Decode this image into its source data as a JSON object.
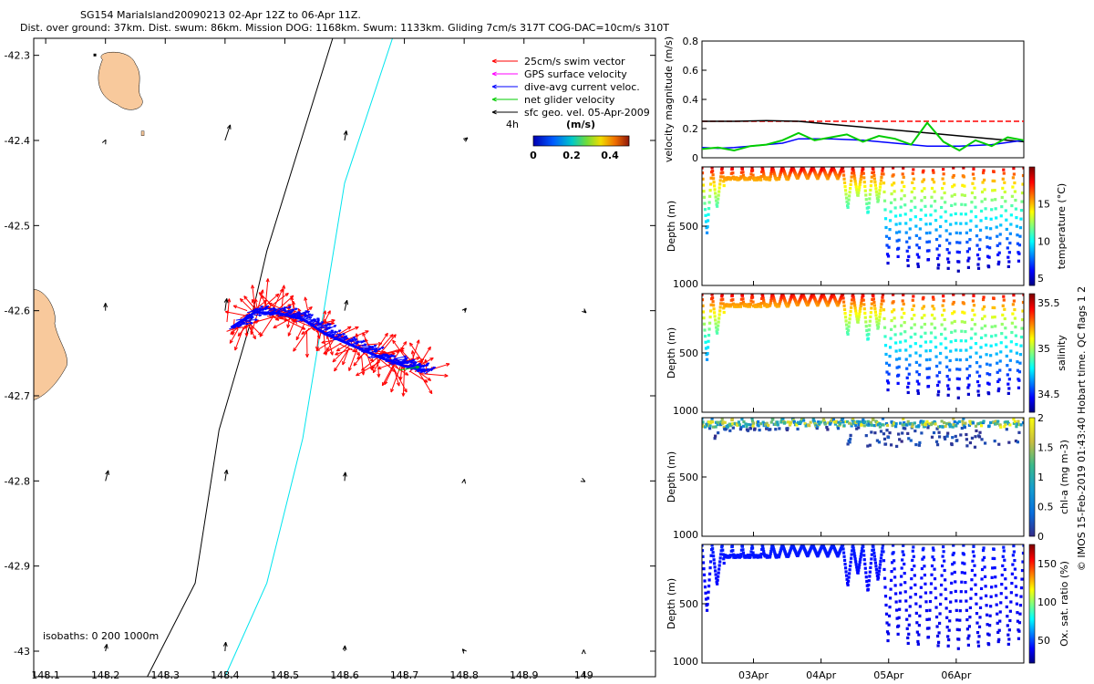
{
  "title_line1": "SG154 MariaIsland20090213 02-Apr 12Z to 06-Apr 11Z.",
  "title_line2": "Dist. over ground: 37km. Dist. swum: 86km. Mission DOG: 1168km. Swum: 1133km. Gliding 7cm/s 317T COG-DAC=10cm/s 310T",
  "credit": "© IMOS 15-Feb-2019 01:43:40 Hobart time. QC flags 1  2",
  "colors": {
    "land": "#f8c99c",
    "swim": "#ff0000",
    "gps": "#ff00ff",
    "dac": "#0000ff",
    "net": "#00cc00",
    "geo": "#000000",
    "isobath200": "#000000",
    "isobath1000": "#00e5ee"
  },
  "chart_data": [
    {
      "type": "scatter",
      "name": "track-map",
      "xlim": [
        148.08,
        149.12
      ],
      "ylim": [
        -43.03,
        -42.28
      ],
      "x_ticks": [
        "148.1",
        "148.2",
        "148.3",
        "148.4",
        "148.5",
        "148.6",
        "148.7",
        "148.8",
        "148.9",
        "149"
      ],
      "x_tick_values": [
        148.1,
        148.2,
        148.3,
        148.4,
        148.5,
        148.6,
        148.7,
        148.8,
        148.9,
        149.0
      ],
      "y_ticks": [
        "-42.3",
        "-42.4",
        "-42.5",
        "-42.6",
        "-42.7",
        "-42.8",
        "-42.9",
        "-43"
      ],
      "y_tick_values": [
        -42.3,
        -42.4,
        -42.5,
        -42.6,
        -42.7,
        -42.8,
        -42.9,
        -43.0
      ],
      "legend": [
        {
          "label": "25cm/s swim vector",
          "color_key": "swim"
        },
        {
          "label": "GPS surface velocity",
          "color_key": "gps"
        },
        {
          "label": "dive-avg current veloc.",
          "color_key": "dac"
        },
        {
          "label": "net glider velocity",
          "color_key": "net"
        },
        {
          "label": "sfc geo. vel. 05-Apr-2009",
          "color_key": "geo"
        }
      ],
      "legend_4h": "4h",
      "colorbar_unit": "(m/s)",
      "colorbar_ticks": [
        "0",
        "0.2",
        "0.4"
      ],
      "colorbar_range": [
        0,
        0.5
      ],
      "isobath_label": "isobaths: 0   200   1000m",
      "isobath_200": [
        [
          148.58,
          -42.28
        ],
        [
          148.47,
          -42.53
        ],
        [
          148.44,
          -42.62
        ],
        [
          148.39,
          -42.74
        ],
        [
          148.35,
          -42.92
        ],
        [
          148.27,
          -43.03
        ]
      ],
      "isobath_1000": [
        [
          148.68,
          -42.28
        ],
        [
          148.6,
          -42.45
        ],
        [
          148.57,
          -42.58
        ],
        [
          148.53,
          -42.75
        ],
        [
          148.47,
          -42.92
        ],
        [
          148.4,
          -43.03
        ]
      ],
      "track": [
        [
          148.41,
          -42.62
        ],
        [
          148.45,
          -42.602
        ],
        [
          148.49,
          -42.603
        ],
        [
          148.53,
          -42.61
        ],
        [
          148.57,
          -42.628
        ],
        [
          148.62,
          -42.643
        ],
        [
          148.66,
          -42.655
        ],
        [
          148.7,
          -42.665
        ],
        [
          148.73,
          -42.67
        ]
      ],
      "geo_vectors": [
        {
          "lon": 148.2,
          "lat": -42.4,
          "u": 0.001,
          "v": 0.002
        },
        {
          "lon": 148.4,
          "lat": -42.4,
          "u": 0.015,
          "v": 0.045
        },
        {
          "lon": 148.6,
          "lat": -42.4,
          "u": 0.005,
          "v": 0.028
        },
        {
          "lon": 148.8,
          "lat": -42.4,
          "u": 0.01,
          "v": 0.008
        },
        {
          "lon": 148.2,
          "lat": -42.6,
          "u": 0.0,
          "v": 0.022
        },
        {
          "lon": 148.4,
          "lat": -42.6,
          "u": 0.005,
          "v": 0.035
        },
        {
          "lon": 148.6,
          "lat": -42.6,
          "u": 0.007,
          "v": 0.03
        },
        {
          "lon": 148.8,
          "lat": -42.6,
          "u": 0.006,
          "v": 0.007
        },
        {
          "lon": 149.0,
          "lat": -42.6,
          "u": 0.007,
          "v": -0.006
        },
        {
          "lon": 148.2,
          "lat": -42.8,
          "u": 0.008,
          "v": 0.03
        },
        {
          "lon": 148.4,
          "lat": -42.8,
          "u": 0.005,
          "v": 0.032
        },
        {
          "lon": 148.6,
          "lat": -42.8,
          "u": 0.002,
          "v": 0.025
        },
        {
          "lon": 148.8,
          "lat": -42.8,
          "u": 0.001,
          "v": 0.005
        },
        {
          "lon": 149.0,
          "lat": -42.8,
          "u": 0.004,
          "v": -0.002
        },
        {
          "lon": 148.2,
          "lat": -43.0,
          "u": 0.004,
          "v": 0.02
        },
        {
          "lon": 148.4,
          "lat": -43.0,
          "u": 0.002,
          "v": 0.026
        },
        {
          "lon": 148.6,
          "lat": -43.0,
          "u": 0.001,
          "v": 0.016
        },
        {
          "lon": 148.8,
          "lat": -43.0,
          "u": -0.005,
          "v": 0.006
        },
        {
          "lon": 149.0,
          "lat": -43.0,
          "u": 0.0,
          "v": 0.004
        }
      ]
    },
    {
      "type": "line",
      "name": "velocity-magnitude",
      "ylabel": "velocity magnitude (m/s)",
      "ylim": [
        0,
        0.8
      ],
      "y_ticks": [
        "0",
        "0.2",
        "0.4",
        "0.6",
        "0.8"
      ],
      "xlim": [
        0,
        1
      ],
      "series": [
        {
          "color_key": "swim",
          "dashed": true,
          "x": [
            0,
            1
          ],
          "values": [
            0.25,
            0.25
          ]
        },
        {
          "color_key": "geo",
          "x": [
            0,
            0.1,
            0.2,
            0.3,
            0.4,
            0.5,
            0.6,
            0.7,
            0.8,
            0.9,
            1.0
          ],
          "values": [
            0.25,
            0.25,
            0.255,
            0.25,
            0.23,
            0.21,
            0.19,
            0.17,
            0.15,
            0.13,
            0.11
          ]
        },
        {
          "color_key": "dac",
          "x": [
            0,
            0.05,
            0.1,
            0.15,
            0.2,
            0.25,
            0.3,
            0.4,
            0.5,
            0.6,
            0.7,
            0.8,
            0.9,
            1.0
          ],
          "values": [
            0.07,
            0.065,
            0.07,
            0.08,
            0.09,
            0.1,
            0.13,
            0.13,
            0.12,
            0.1,
            0.08,
            0.08,
            0.09,
            0.12
          ]
        },
        {
          "color_key": "net",
          "x": [
            0,
            0.05,
            0.1,
            0.15,
            0.2,
            0.25,
            0.3,
            0.35,
            0.4,
            0.45,
            0.5,
            0.55,
            0.6,
            0.65,
            0.7,
            0.75,
            0.8,
            0.85,
            0.9,
            0.95,
            1.0
          ],
          "values": [
            0.06,
            0.07,
            0.05,
            0.08,
            0.09,
            0.12,
            0.17,
            0.12,
            0.14,
            0.16,
            0.11,
            0.15,
            0.13,
            0.09,
            0.24,
            0.11,
            0.05,
            0.12,
            0.08,
            0.14,
            0.12
          ]
        }
      ]
    },
    {
      "type": "scatter",
      "name": "temperature",
      "ylabel": "Depth (m)",
      "cbar_label": "temperature (°C)",
      "ylim": [
        0,
        1000
      ],
      "y_ticks": [
        "500",
        "1000"
      ],
      "cbar_ticks": [
        "5",
        "10",
        "15"
      ],
      "cbar_tick_values": [
        5,
        10,
        15
      ],
      "cbar_range": [
        4,
        20
      ],
      "colormap": "jet",
      "surface_value": 19.5,
      "deep_value": 4.5
    },
    {
      "type": "scatter",
      "name": "salinity",
      "ylabel": "Depth (m)",
      "cbar_label": "salinity",
      "ylim": [
        0,
        1000
      ],
      "y_ticks": [
        "500",
        "1000"
      ],
      "cbar_ticks": [
        "34.5",
        "35",
        "35.5"
      ],
      "cbar_tick_values": [
        34.5,
        35,
        35.5
      ],
      "cbar_range": [
        34.3,
        35.6
      ],
      "colormap": "jet",
      "surface_value": 35.55,
      "deep_value": 34.35
    },
    {
      "type": "scatter",
      "name": "chl-a",
      "ylabel": "Depth (m)",
      "cbar_label": "chl-a (mg m-3)",
      "ylim": [
        0,
        1000
      ],
      "y_ticks": [
        "500",
        "1000"
      ],
      "cbar_ticks": [
        "0",
        "0.5",
        "1",
        "1.5",
        "2"
      ],
      "cbar_tick_values": [
        0,
        0.5,
        1,
        1.5,
        2
      ],
      "cbar_range": [
        0,
        2
      ],
      "colormap": "parula"
    },
    {
      "type": "scatter",
      "name": "oxygen",
      "ylabel": "Depth (m)",
      "cbar_label": "Ox. sat. ratio (%)",
      "ylim": [
        0,
        1000
      ],
      "y_ticks": [
        "500",
        "1000"
      ],
      "cbar_ticks": [
        "50",
        "100",
        "150"
      ],
      "cbar_tick_values": [
        50,
        100,
        150
      ],
      "cbar_range": [
        20,
        175
      ],
      "colormap": "jet",
      "surface_value": 45,
      "deep_value": 35,
      "x_ticks": [
        "03Apr",
        "04Apr",
        "05Apr",
        "06Apr"
      ]
    }
  ],
  "dives": {
    "time_fraction_ticks": [
      0.16,
      0.37,
      0.58,
      0.79
    ],
    "plateau": [
      0.07,
      0.28
    ],
    "max_depths": [
      560,
      340,
      400,
      380,
      300,
      430,
      220,
      150,
      120,
      100,
      100,
      100,
      100,
      100,
      350,
      250,
      400,
      300,
      820,
      760,
      850,
      870,
      820,
      880,
      870,
      880,
      860,
      880,
      880,
      850,
      860,
      800
    ]
  }
}
